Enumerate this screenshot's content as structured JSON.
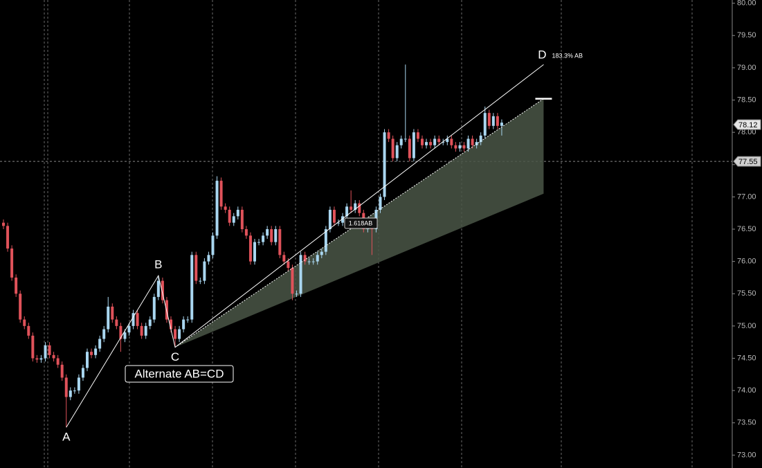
{
  "chart_data": {
    "type": "candlestick",
    "up_color": "#a9d6f0",
    "down_color": "#e0525a",
    "ylim": [
      72.8,
      80.05
    ],
    "yticks": [
      {
        "value": 73,
        "label": "73.00"
      },
      {
        "value": 73.5,
        "label": "73.50"
      },
      {
        "value": 74,
        "label": "74.00"
      },
      {
        "value": 74.5,
        "label": "74.50"
      },
      {
        "value": 75,
        "label": "75.00"
      },
      {
        "value": 75.5,
        "label": "75.50"
      },
      {
        "value": 76,
        "label": "76.00"
      },
      {
        "value": 76.5,
        "label": "76.50"
      },
      {
        "value": 77,
        "label": "77.00"
      },
      {
        "value": 77.5,
        "label": "77.50"
      },
      {
        "value": 78,
        "label": "78.00"
      },
      {
        "value": 78.5,
        "label": "78.50"
      },
      {
        "value": 79,
        "label": "79.00"
      },
      {
        "value": 79.5,
        "label": "79.50"
      },
      {
        "value": 80,
        "label": "80.00"
      }
    ],
    "grid": false,
    "open": [
      76.6,
      76.55,
      76.2,
      75.75,
      75.5,
      75.1,
      75.0,
      74.85,
      74.5,
      74.48,
      74.5,
      74.7,
      74.55,
      74.5,
      74.4,
      74.2,
      73.9,
      74.0,
      74.0,
      74.2,
      74.35,
      74.6,
      74.55,
      74.65,
      74.8,
      74.95,
      75.3,
      75.1,
      75.0,
      74.8,
      74.9,
      75.0,
      75.2,
      75.0,
      74.85,
      75.0,
      75.1,
      75.45,
      75.7,
      75.4,
      75.1,
      74.95,
      74.8,
      74.95,
      75.1,
      75.1,
      76.1,
      75.7,
      75.7,
      76.0,
      76.1,
      76.4,
      77.25,
      76.85,
      76.8,
      76.6,
      76.7,
      76.8,
      76.5,
      76.4,
      76.0,
      76.3,
      76.3,
      76.4,
      76.5,
      76.3,
      76.5,
      76.1,
      76.0,
      75.9,
      75.5,
      75.5,
      76.1,
      76.0,
      76.0,
      76.0,
      76.1,
      76.15,
      76.5,
      76.8,
      76.6,
      76.6,
      76.7,
      76.85,
      76.8,
      76.9,
      76.75,
      76.5,
      76.6,
      76.5,
      76.8,
      77.0,
      78.0,
      77.9,
      77.6,
      77.8,
      77.9,
      77.9,
      77.6,
      78.0,
      77.9,
      77.8,
      77.85,
      77.8,
      77.9,
      77.85,
      77.85,
      77.9,
      77.8,
      77.75,
      77.8,
      77.75,
      77.9,
      77.8,
      77.85,
      77.95,
      78.3,
      78.1,
      78.25,
      78.1
    ],
    "high": [
      76.65,
      76.6,
      76.25,
      75.8,
      75.55,
      75.15,
      75.05,
      74.9,
      74.55,
      74.55,
      74.75,
      74.75,
      74.6,
      74.55,
      74.45,
      74.25,
      74.05,
      74.05,
      74.25,
      74.4,
      74.65,
      74.65,
      74.7,
      74.85,
      75.0,
      75.45,
      75.35,
      75.15,
      75.05,
      74.95,
      75.05,
      75.25,
      75.25,
      75.05,
      75.05,
      75.15,
      75.5,
      75.78,
      75.75,
      75.45,
      75.15,
      75.0,
      75.0,
      75.15,
      75.15,
      76.15,
      76.15,
      75.75,
      76.05,
      76.15,
      76.45,
      77.32,
      77.3,
      76.9,
      76.85,
      76.75,
      76.85,
      76.85,
      76.55,
      76.45,
      76.35,
      76.35,
      76.45,
      76.55,
      76.55,
      76.55,
      76.55,
      76.15,
      76.05,
      75.95,
      75.55,
      76.15,
      76.15,
      76.05,
      76.05,
      76.15,
      76.2,
      76.55,
      76.85,
      76.85,
      76.65,
      76.75,
      76.9,
      77.1,
      76.95,
      76.95,
      76.8,
      76.65,
      76.65,
      76.85,
      77.05,
      78.05,
      78.05,
      77.95,
      77.85,
      77.95,
      79.05,
      77.95,
      78.05,
      78.05,
      77.95,
      77.9,
      77.9,
      77.95,
      77.95,
      77.9,
      77.95,
      77.95,
      77.85,
      77.85,
      77.85,
      77.95,
      77.95,
      77.9,
      78.0,
      78.4,
      78.35,
      78.3,
      78.3,
      78.2
    ],
    "low": [
      76.5,
      76.15,
      75.7,
      75.45,
      75.05,
      74.95,
      74.8,
      74.45,
      74.43,
      74.43,
      74.45,
      74.5,
      74.45,
      74.35,
      74.15,
      73.43,
      73.85,
      73.95,
      73.95,
      74.15,
      74.3,
      74.5,
      74.5,
      74.6,
      74.75,
      74.9,
      75.05,
      74.95,
      74.6,
      74.75,
      74.85,
      74.95,
      74.95,
      74.8,
      74.8,
      74.95,
      75.05,
      75.4,
      75.35,
      75.05,
      74.9,
      74.67,
      74.75,
      74.9,
      75.05,
      75.05,
      75.65,
      75.65,
      75.65,
      75.95,
      76.05,
      76.35,
      76.8,
      76.75,
      76.55,
      76.55,
      76.65,
      76.45,
      76.35,
      75.95,
      75.95,
      76.25,
      76.25,
      76.35,
      76.25,
      76.25,
      76.05,
      75.95,
      75.85,
      75.4,
      75.45,
      75.45,
      75.95,
      75.95,
      75.95,
      75.95,
      76.05,
      76.1,
      76.45,
      76.55,
      76.55,
      76.55,
      76.65,
      76.75,
      76.75,
      76.7,
      76.45,
      76.45,
      76.1,
      76.45,
      76.75,
      76.95,
      77.85,
      77.55,
      77.55,
      77.75,
      77.85,
      77.55,
      77.55,
      77.85,
      77.75,
      77.75,
      77.75,
      77.75,
      77.8,
      77.8,
      77.8,
      77.75,
      77.7,
      77.7,
      77.7,
      77.7,
      77.75,
      77.75,
      77.8,
      77.9,
      78.05,
      78.05,
      78.05,
      77.95
    ],
    "close": [
      76.55,
      76.2,
      75.75,
      75.5,
      75.1,
      75.0,
      74.85,
      74.5,
      74.48,
      74.5,
      74.7,
      74.55,
      74.5,
      74.4,
      74.2,
      73.9,
      74.0,
      74.0,
      74.2,
      74.35,
      74.6,
      74.55,
      74.65,
      74.8,
      74.95,
      75.3,
      75.1,
      75.0,
      74.8,
      74.9,
      75.0,
      75.2,
      75.0,
      74.85,
      75.0,
      75.1,
      75.45,
      75.7,
      75.4,
      75.1,
      74.95,
      74.8,
      74.95,
      75.1,
      75.1,
      76.1,
      75.7,
      75.7,
      76.0,
      76.1,
      76.4,
      77.25,
      76.85,
      76.8,
      76.6,
      76.7,
      76.8,
      76.5,
      76.4,
      76.0,
      76.3,
      76.3,
      76.4,
      76.5,
      76.3,
      76.5,
      76.1,
      76.0,
      75.9,
      75.5,
      75.5,
      76.1,
      76.0,
      76.0,
      76.0,
      76.1,
      76.15,
      76.5,
      76.8,
      76.6,
      76.6,
      76.7,
      76.85,
      76.8,
      76.9,
      76.75,
      76.5,
      76.6,
      76.5,
      76.8,
      77.0,
      78.0,
      77.9,
      77.6,
      77.8,
      77.9,
      77.9,
      77.6,
      78.0,
      77.9,
      77.8,
      77.85,
      77.8,
      77.9,
      77.85,
      77.85,
      77.9,
      77.8,
      77.75,
      77.8,
      77.75,
      77.9,
      77.8,
      77.85,
      77.95,
      78.3,
      78.1,
      78.25,
      78.1,
      78.15
    ],
    "pattern": [
      {
        "label": "A",
        "index": 15,
        "value": 73.43
      },
      {
        "label": "B",
        "index": 37,
        "value": 75.78
      },
      {
        "label": "C",
        "index": 41,
        "value": 74.67
      },
      {
        "label": "D",
        "index": 129,
        "value": 79.05
      }
    ],
    "target_zone": {
      "index": 129,
      "upper": 78.52,
      "lower": 77.05
    },
    "price_markers": [
      {
        "value": 78.12,
        "label": "78.12"
      },
      {
        "value": 77.55,
        "label": "77.55"
      }
    ],
    "annotations": {
      "pattern_name": "Alternate AB=CD",
      "d_ratio": "183.3% AB",
      "extension": "1.618AB"
    }
  }
}
